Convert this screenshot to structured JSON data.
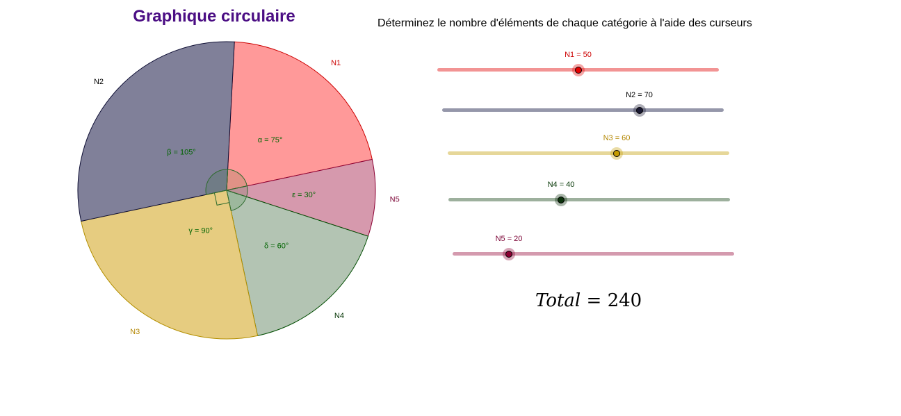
{
  "title": "Graphique circulaire",
  "instruction": "Déterminez le nombre d'éléments de chaque catégorie à l'aide des curseurs",
  "total": {
    "label": "Total",
    "equals": "=",
    "value": "240"
  },
  "slider_range": [
    0,
    100
  ],
  "chart_data": {
    "type": "pie",
    "title": "Graphique circulaire",
    "slices": [
      {
        "label": "N1",
        "value": 50,
        "angle_label": "α = 75°",
        "angle": 75,
        "fill": "#ff9999",
        "stroke": "#cc0000",
        "label_color": "#cc0000",
        "angle_color": "#006400"
      },
      {
        "label": "N5",
        "value": 20,
        "angle_label": "ε = 30°",
        "angle": 30,
        "fill": "#d699ad",
        "stroke": "#8b0033",
        "label_color": "#7a0033",
        "angle_color": "#006400"
      },
      {
        "label": "N4",
        "value": 40,
        "angle_label": "δ = 60°",
        "angle": 60,
        "fill": "#b3c4b3",
        "stroke": "#004d00",
        "label_color": "#003300",
        "angle_color": "#006400"
      },
      {
        "label": "N3",
        "value": 60,
        "angle_label": "γ = 90°",
        "angle": 90,
        "fill": "#e6cc80",
        "stroke": "#b38f00",
        "label_color": "#b38600",
        "angle_color": "#006400"
      },
      {
        "label": "N2",
        "value": 70,
        "angle_label": "β = 105°",
        "angle": 105,
        "fill": "#808099",
        "stroke": "#0d0d33",
        "label_color": "#000000",
        "angle_color": "#006400"
      }
    ]
  },
  "sliders": [
    {
      "name": "N1",
      "label": "N1 = 50",
      "value": 50,
      "track_color": "#f29494",
      "knob_color": "#e60000",
      "halo_color": "rgba(230,0,0,0.35)",
      "label_color": "#cc0000"
    },
    {
      "name": "N2",
      "label": "N2 = 70",
      "value": 70,
      "track_color": "#9597aa",
      "knob_color": "#1a1a33",
      "halo_color": "rgba(26,26,51,0.35)",
      "label_color": "#000000"
    },
    {
      "name": "N3",
      "label": "N3 = 60",
      "value": 60,
      "track_color": "#e6d799",
      "knob_color": "#c49a00",
      "halo_color": "rgba(196,154,0,0.35)",
      "label_color": "#b38600"
    },
    {
      "name": "N4",
      "label": "N4 = 40",
      "value": 40,
      "track_color": "#9db09d",
      "knob_color": "#0d330d",
      "halo_color": "rgba(13,51,13,0.35)",
      "label_color": "#003300"
    },
    {
      "name": "N5",
      "label": "N5 = 20",
      "value": 20,
      "track_color": "#d49aae",
      "knob_color": "#8b0033",
      "halo_color": "rgba(139,0,51,0.35)",
      "label_color": "#7a0033"
    }
  ]
}
